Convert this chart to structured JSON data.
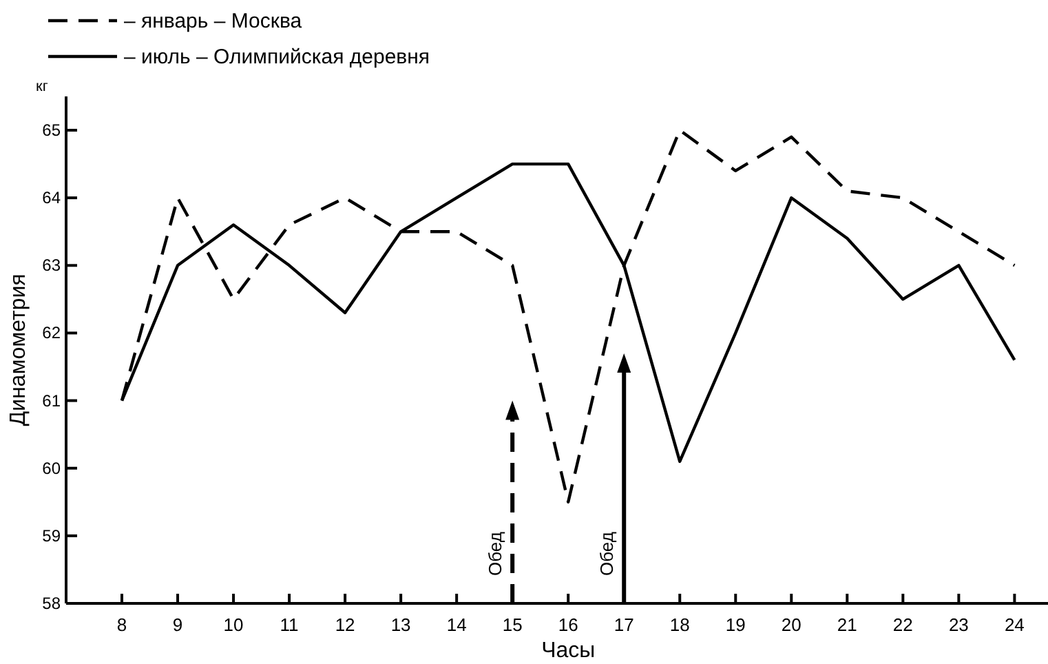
{
  "chart_data": {
    "type": "line",
    "xlabel": "Часы",
    "ylabel": "Динамометрия",
    "annotations": [
      "кг"
    ],
    "ref_lines": [
      {
        "axis": "x",
        "value": 15,
        "label": "Обед",
        "line_style": "dashed",
        "color": "#000000"
      },
      {
        "axis": "x",
        "value": 17,
        "label": "Обед",
        "line_style": "solid",
        "color": "#000000"
      }
    ],
    "x": [
      8,
      9,
      10,
      11,
      12,
      13,
      14,
      15,
      16,
      17,
      18,
      19,
      20,
      21,
      22,
      23,
      24
    ],
    "series": [
      {
        "name": "– январь – Москва",
        "color": "#000000",
        "line_style": "dashed",
        "values": [
          61,
          64,
          62.5,
          63.6,
          64,
          63.5,
          63.5,
          63,
          59.5,
          63,
          65,
          64.4,
          64.9,
          64.1,
          64,
          63.5,
          63
        ]
      },
      {
        "name": "– июль – Олимпийская деревня",
        "color": "#000000",
        "line_style": "solid",
        "values": [
          61,
          63,
          63.6,
          63,
          62.3,
          63.5,
          64,
          64.5,
          64.5,
          63,
          60.1,
          62,
          64,
          63.4,
          62.5,
          63,
          61.6
        ]
      }
    ],
    "xlim": [
      7,
      24.6
    ],
    "xticks": [
      8,
      9,
      10,
      11,
      12,
      13,
      14,
      15,
      16,
      17,
      18,
      19,
      20,
      21,
      22,
      23,
      24
    ],
    "ylim": [
      58,
      65.5
    ],
    "yticks": [
      58,
      59,
      60,
      61,
      62,
      63,
      64,
      65
    ],
    "grid": false,
    "legend": "top left",
    "marker": "none"
  }
}
